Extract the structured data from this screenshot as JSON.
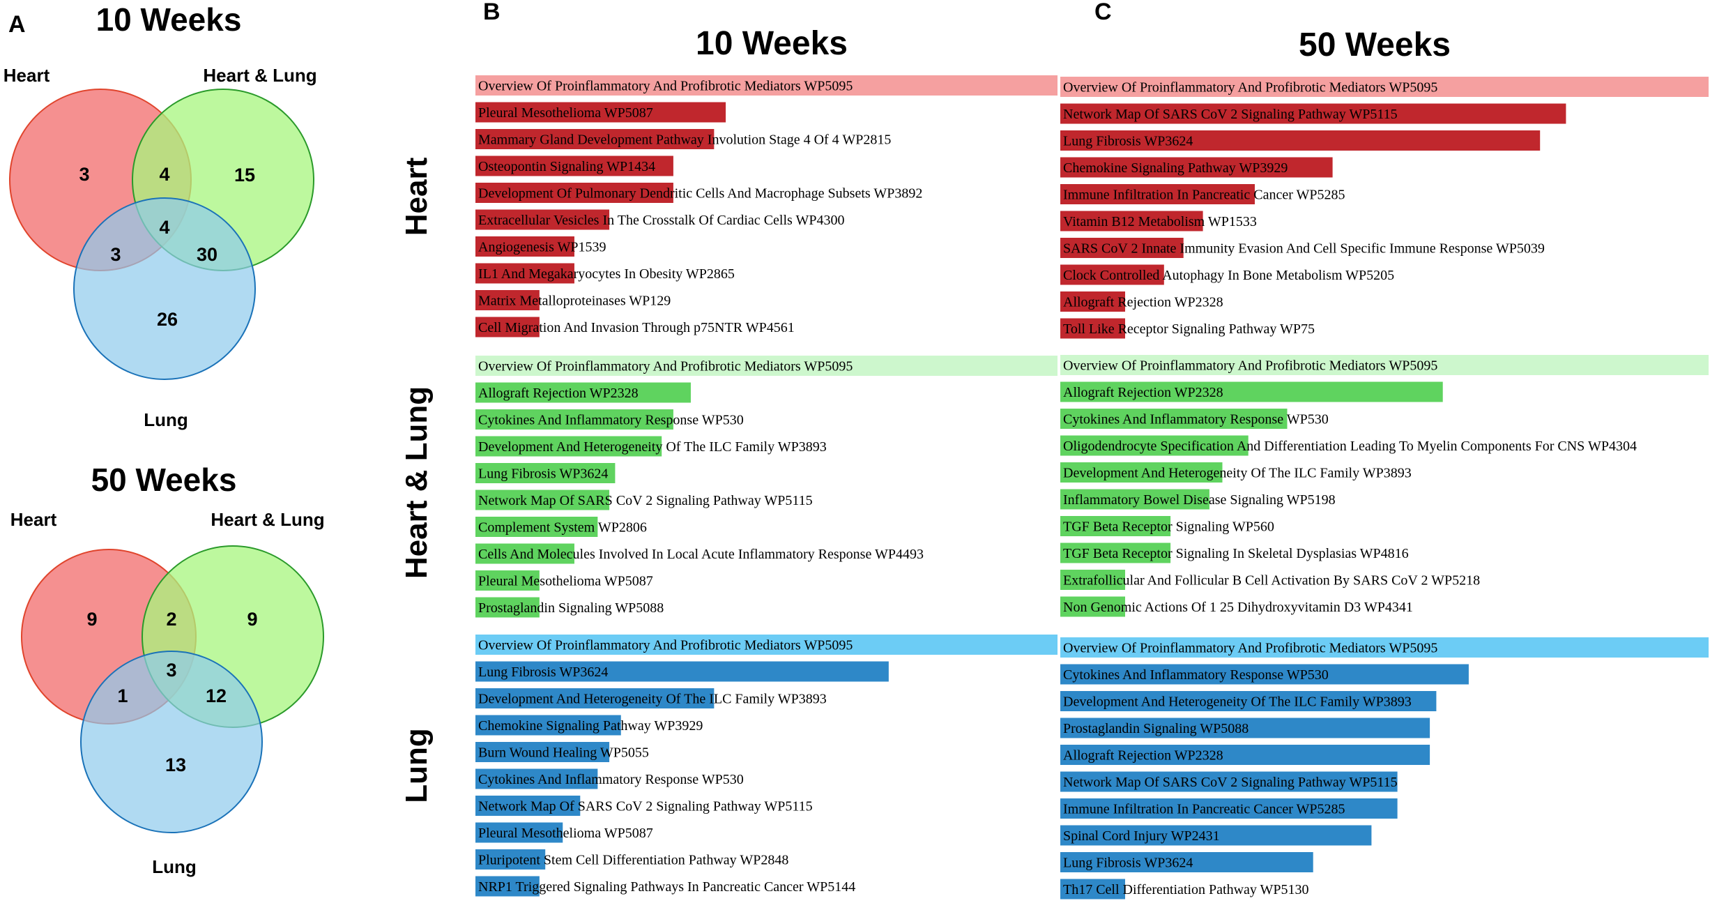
{
  "panels": {
    "a": "A",
    "b": "B",
    "c": "C"
  },
  "chart_data": [
    {
      "type": "venn",
      "title": "10 Weeks",
      "sets": [
        "Heart",
        "Heart & Lung",
        "Lung"
      ],
      "regions": {
        "heart_only": 3,
        "heart_hl": 4,
        "hl_only": 15,
        "all_three": 4,
        "heart_lung": 3,
        "hl_lung": 30,
        "lung_only": 26
      }
    },
    {
      "type": "venn",
      "title": "50 Weeks",
      "sets": [
        "Heart",
        "Heart & Lung",
        "Lung"
      ],
      "regions": {
        "heart_only": 9,
        "heart_hl": 2,
        "hl_only": 9,
        "all_three": 3,
        "heart_lung": 1,
        "hl_lung": 12,
        "lung_only": 13
      }
    },
    {
      "type": "bar",
      "orientation": "horizontal",
      "title": "10 Weeks",
      "groups": [
        {
          "name": "Heart",
          "colors": {
            "top": "#f5a0a0",
            "rest": "#c0272d"
          },
          "categories": [
            "Overview Of Proinflammatory And Profibrotic Mediators WP5095",
            "Pleural Mesothelioma WP5087",
            "Mammary Gland Development Pathway Involution Stage 4 Of 4 WP2815",
            "Osteopontin Signaling WP1434",
            "Development Of Pulmonary Dendritic Cells And Macrophage Subsets WP3892",
            "Extracellular Vesicles In The Crosstalk Of Cardiac Cells WP4300",
            "Angiogenesis WP1539",
            "IL1 And Megakaryocytes In Obesity WP2865",
            "Matrix Metalloproteinases WP129",
            "Cell Migration And Invasion Through p75NTR WP4561"
          ],
          "values": [
            100,
            43,
            41,
            34,
            34,
            23,
            17,
            17,
            11,
            11
          ]
        },
        {
          "name": "Heart & Lung",
          "colors": {
            "top": "#cdf7cd",
            "rest": "#5fd35f"
          },
          "categories": [
            "Overview Of Proinflammatory And Profibrotic Mediators WP5095",
            "Allograft Rejection WP2328",
            "Cytokines And Inflammatory Response WP530",
            "Development And Heterogeneity Of The ILC Family WP3893",
            "Lung Fibrosis WP3624",
            "Network Map Of SARS CoV 2 Signaling Pathway WP5115",
            "Complement System WP2806",
            "Cells And Molecules Involved In Local Acute Inflammatory Response WP4493",
            "Pleural Mesothelioma WP5087",
            "Prostaglandin Signaling WP5088"
          ],
          "values": [
            100,
            37,
            34,
            32,
            24,
            23,
            21,
            17,
            11,
            11
          ]
        },
        {
          "name": "Lung",
          "colors": {
            "top": "#6cccf5",
            "rest": "#2e88c8"
          },
          "categories": [
            "Overview Of Proinflammatory And Profibrotic Mediators WP5095",
            "Lung Fibrosis WP3624",
            "Development And Heterogeneity Of The ILC Family WP3893",
            "Chemokine Signaling Pathway WP3929",
            "Burn Wound Healing WP5055",
            "Cytokines And Inflammatory Response WP530",
            "Network Map Of SARS CoV 2 Signaling Pathway WP5115",
            "Pleural Mesothelioma WP5087",
            "Pluripotent Stem Cell Differentiation Pathway WP2848",
            "NRP1 Triggered Signaling Pathways In Pancreatic Cancer WP5144"
          ],
          "values": [
            100,
            71,
            41,
            25,
            23,
            21,
            18,
            15,
            12,
            11
          ]
        }
      ]
    },
    {
      "type": "bar",
      "orientation": "horizontal",
      "title": "50 Weeks",
      "groups": [
        {
          "name": "Heart",
          "colors": {
            "top": "#f5a0a0",
            "rest": "#c0272d"
          },
          "categories": [
            "Overview Of Proinflammatory And Profibrotic Mediators WP5095",
            "Network Map Of SARS CoV 2 Signaling Pathway WP5115",
            "Lung Fibrosis WP3624",
            "Chemokine Signaling Pathway WP3929",
            "Immune Infiltration In Pancreatic Cancer WP5285",
            "Vitamin B12 Metabolism WP1533",
            "SARS CoV 2 Innate Immunity Evasion And Cell Specific Immune Response WP5039",
            "Clock Controlled Autophagy In Bone Metabolism WP5205",
            "Allograft Rejection WP2328",
            "Toll Like Receptor Signaling Pathway WP75"
          ],
          "values": [
            100,
            78,
            74,
            42,
            30,
            22,
            19,
            16,
            10,
            10
          ]
        },
        {
          "name": "Heart & Lung",
          "colors": {
            "top": "#cdf7cd",
            "rest": "#5fd35f"
          },
          "categories": [
            "Overview Of Proinflammatory And Profibrotic Mediators WP5095",
            "Allograft Rejection WP2328",
            "Cytokines And Inflammatory Response WP530",
            "Oligodendrocyte Specification And Differentiation Leading To Myelin Components For CNS WP4304",
            "Development And Heterogeneity Of The ILC Family WP3893",
            "Inflammatory Bowel Disease Signaling WP5198",
            "TGF Beta Receptor Signaling WP560",
            "TGF Beta Receptor Signaling In Skeletal Dysplasias WP4816",
            "Extrafollicular And Follicular B Cell Activation By SARS CoV 2 WP5218",
            "Non Genomic Actions Of 1 25 Dihydroxyvitamin D3 WP4341"
          ],
          "values": [
            100,
            59,
            35,
            29,
            25,
            23,
            17,
            17,
            10,
            10
          ]
        },
        {
          "name": "Lung",
          "colors": {
            "top": "#6cccf5",
            "rest": "#2e88c8"
          },
          "categories": [
            "Overview Of Proinflammatory And Profibrotic Mediators WP5095",
            "Cytokines And Inflammatory Response WP530",
            "Development And Heterogeneity Of The ILC Family WP3893",
            "Prostaglandin Signaling WP5088",
            "Allograft Rejection WP2328",
            "Network Map Of SARS CoV 2 Signaling Pathway WP5115",
            "Immune Infiltration In Pancreatic Cancer WP5285",
            "Spinal Cord Injury WP2431",
            "Lung Fibrosis WP3624",
            "Th17 Cell Differentiation Pathway WP5130"
          ],
          "values": [
            100,
            63,
            58,
            57,
            57,
            52,
            52,
            48,
            39,
            10
          ]
        }
      ]
    }
  ]
}
